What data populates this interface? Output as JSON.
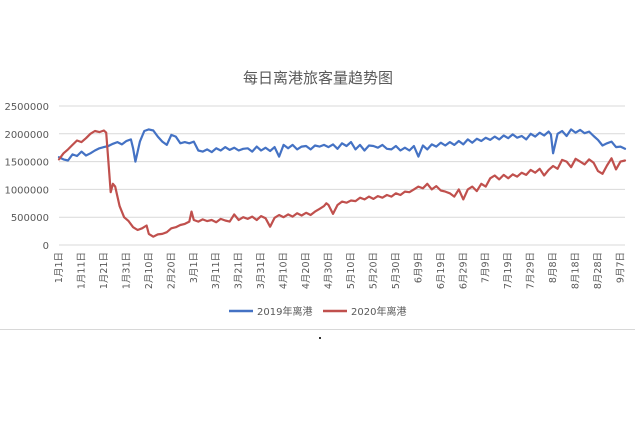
{
  "chart_data": {
    "type": "line",
    "title": "每日离港旅客量趋势图",
    "xlabel": "",
    "ylabel": "",
    "ylim": [
      0,
      2500000
    ],
    "y_ticks": [
      0,
      500000,
      1000000,
      1500000,
      2000000,
      2500000
    ],
    "y_tick_labels": [
      "0",
      "500000",
      "1000000",
      "1500000",
      "2000000",
      "2500000"
    ],
    "x_start_day": 1,
    "x_end_day": 253,
    "x_tick_labels": [
      "1月1日",
      "1月11日",
      "1月21日",
      "1月31日",
      "2月10日",
      "2月20日",
      "3月1日",
      "3月11日",
      "3月21日",
      "3月31日",
      "4月10日",
      "4月20日",
      "4月30日",
      "5月10日",
      "5月20日",
      "5月30日",
      "6月9日",
      "6月19日",
      "6月29日",
      "7月9日",
      "7月19日",
      "7月29日",
      "8月8日",
      "8月18日",
      "8月28日",
      "9月7日"
    ],
    "x_tick_days": [
      1,
      11,
      21,
      31,
      41,
      51,
      61,
      71,
      81,
      91,
      101,
      111,
      121,
      131,
      141,
      151,
      161,
      171,
      181,
      191,
      201,
      211,
      221,
      231,
      241,
      251
    ],
    "grid": "horizontal",
    "legend_position": "bottom",
    "series": [
      {
        "name": "2019年离港",
        "color": "#4472c4",
        "points": [
          [
            1,
            1580000
          ],
          [
            3,
            1540000
          ],
          [
            5,
            1520000
          ],
          [
            7,
            1630000
          ],
          [
            9,
            1600000
          ],
          [
            11,
            1680000
          ],
          [
            13,
            1610000
          ],
          [
            15,
            1650000
          ],
          [
            17,
            1700000
          ],
          [
            19,
            1740000
          ],
          [
            21,
            1760000
          ],
          [
            23,
            1780000
          ],
          [
            25,
            1820000
          ],
          [
            27,
            1850000
          ],
          [
            29,
            1810000
          ],
          [
            31,
            1870000
          ],
          [
            33,
            1900000
          ],
          [
            34,
            1740000
          ],
          [
            35,
            1500000
          ],
          [
            37,
            1860000
          ],
          [
            39,
            2050000
          ],
          [
            41,
            2080000
          ],
          [
            43,
            2060000
          ],
          [
            45,
            1950000
          ],
          [
            47,
            1860000
          ],
          [
            49,
            1800000
          ],
          [
            51,
            1980000
          ],
          [
            53,
            1950000
          ],
          [
            55,
            1830000
          ],
          [
            57,
            1850000
          ],
          [
            59,
            1830000
          ],
          [
            61,
            1860000
          ],
          [
            63,
            1700000
          ],
          [
            65,
            1680000
          ],
          [
            67,
            1720000
          ],
          [
            69,
            1670000
          ],
          [
            71,
            1740000
          ],
          [
            73,
            1700000
          ],
          [
            75,
            1760000
          ],
          [
            77,
            1710000
          ],
          [
            79,
            1750000
          ],
          [
            81,
            1700000
          ],
          [
            83,
            1730000
          ],
          [
            85,
            1740000
          ],
          [
            87,
            1680000
          ],
          [
            89,
            1770000
          ],
          [
            91,
            1700000
          ],
          [
            93,
            1750000
          ],
          [
            95,
            1690000
          ],
          [
            97,
            1760000
          ],
          [
            99,
            1590000
          ],
          [
            101,
            1800000
          ],
          [
            103,
            1740000
          ],
          [
            105,
            1800000
          ],
          [
            107,
            1720000
          ],
          [
            109,
            1770000
          ],
          [
            111,
            1780000
          ],
          [
            113,
            1720000
          ],
          [
            115,
            1790000
          ],
          [
            117,
            1770000
          ],
          [
            119,
            1800000
          ],
          [
            121,
            1760000
          ],
          [
            123,
            1810000
          ],
          [
            125,
            1730000
          ],
          [
            127,
            1830000
          ],
          [
            129,
            1780000
          ],
          [
            131,
            1850000
          ],
          [
            133,
            1720000
          ],
          [
            135,
            1800000
          ],
          [
            137,
            1700000
          ],
          [
            139,
            1790000
          ],
          [
            141,
            1780000
          ],
          [
            143,
            1750000
          ],
          [
            145,
            1800000
          ],
          [
            147,
            1730000
          ],
          [
            149,
            1720000
          ],
          [
            151,
            1780000
          ],
          [
            153,
            1700000
          ],
          [
            155,
            1750000
          ],
          [
            157,
            1700000
          ],
          [
            159,
            1780000
          ],
          [
            161,
            1590000
          ],
          [
            163,
            1790000
          ],
          [
            165,
            1720000
          ],
          [
            167,
            1810000
          ],
          [
            169,
            1770000
          ],
          [
            171,
            1840000
          ],
          [
            173,
            1790000
          ],
          [
            175,
            1850000
          ],
          [
            177,
            1800000
          ],
          [
            179,
            1870000
          ],
          [
            181,
            1810000
          ],
          [
            183,
            1900000
          ],
          [
            185,
            1840000
          ],
          [
            187,
            1910000
          ],
          [
            189,
            1870000
          ],
          [
            191,
            1930000
          ],
          [
            193,
            1890000
          ],
          [
            195,
            1950000
          ],
          [
            197,
            1900000
          ],
          [
            199,
            1970000
          ],
          [
            201,
            1920000
          ],
          [
            203,
            1990000
          ],
          [
            205,
            1930000
          ],
          [
            207,
            1960000
          ],
          [
            209,
            1900000
          ],
          [
            211,
            2000000
          ],
          [
            213,
            1950000
          ],
          [
            215,
            2020000
          ],
          [
            217,
            1970000
          ],
          [
            219,
            2040000
          ],
          [
            220,
            1990000
          ],
          [
            221,
            1650000
          ],
          [
            223,
            2000000
          ],
          [
            225,
            2050000
          ],
          [
            227,
            1960000
          ],
          [
            229,
            2080000
          ],
          [
            231,
            2020000
          ],
          [
            233,
            2070000
          ],
          [
            235,
            2010000
          ],
          [
            237,
            2040000
          ],
          [
            239,
            1960000
          ],
          [
            241,
            1890000
          ],
          [
            243,
            1790000
          ],
          [
            245,
            1830000
          ],
          [
            247,
            1860000
          ],
          [
            249,
            1760000
          ],
          [
            251,
            1770000
          ],
          [
            253,
            1730000
          ]
        ]
      },
      {
        "name": "2020年离港",
        "color": "#c0504d",
        "points": [
          [
            1,
            1540000
          ],
          [
            3,
            1650000
          ],
          [
            5,
            1720000
          ],
          [
            7,
            1800000
          ],
          [
            9,
            1880000
          ],
          [
            11,
            1850000
          ],
          [
            13,
            1920000
          ],
          [
            15,
            2000000
          ],
          [
            17,
            2050000
          ],
          [
            19,
            2030000
          ],
          [
            21,
            2060000
          ],
          [
            22,
            2020000
          ],
          [
            23,
            1500000
          ],
          [
            24,
            950000
          ],
          [
            25,
            1100000
          ],
          [
            26,
            1050000
          ],
          [
            28,
            700000
          ],
          [
            30,
            500000
          ],
          [
            32,
            430000
          ],
          [
            34,
            320000
          ],
          [
            36,
            270000
          ],
          [
            38,
            300000
          ],
          [
            40,
            350000
          ],
          [
            41,
            200000
          ],
          [
            43,
            150000
          ],
          [
            45,
            190000
          ],
          [
            47,
            200000
          ],
          [
            49,
            230000
          ],
          [
            51,
            300000
          ],
          [
            53,
            320000
          ],
          [
            55,
            360000
          ],
          [
            57,
            380000
          ],
          [
            59,
            420000
          ],
          [
            60,
            600000
          ],
          [
            61,
            450000
          ],
          [
            63,
            420000
          ],
          [
            65,
            460000
          ],
          [
            67,
            430000
          ],
          [
            69,
            450000
          ],
          [
            71,
            410000
          ],
          [
            73,
            470000
          ],
          [
            75,
            440000
          ],
          [
            77,
            420000
          ],
          [
            79,
            550000
          ],
          [
            81,
            450000
          ],
          [
            83,
            500000
          ],
          [
            85,
            470000
          ],
          [
            87,
            510000
          ],
          [
            89,
            450000
          ],
          [
            91,
            520000
          ],
          [
            93,
            480000
          ],
          [
            95,
            330000
          ],
          [
            97,
            490000
          ],
          [
            99,
            540000
          ],
          [
            101,
            500000
          ],
          [
            103,
            550000
          ],
          [
            105,
            510000
          ],
          [
            107,
            570000
          ],
          [
            109,
            530000
          ],
          [
            111,
            580000
          ],
          [
            113,
            540000
          ],
          [
            115,
            600000
          ],
          [
            117,
            650000
          ],
          [
            119,
            700000
          ],
          [
            120,
            750000
          ],
          [
            121,
            720000
          ],
          [
            123,
            560000
          ],
          [
            125,
            720000
          ],
          [
            127,
            780000
          ],
          [
            129,
            760000
          ],
          [
            131,
            800000
          ],
          [
            133,
            790000
          ],
          [
            135,
            850000
          ],
          [
            137,
            820000
          ],
          [
            139,
            870000
          ],
          [
            141,
            830000
          ],
          [
            143,
            880000
          ],
          [
            145,
            850000
          ],
          [
            147,
            900000
          ],
          [
            149,
            870000
          ],
          [
            151,
            930000
          ],
          [
            153,
            900000
          ],
          [
            155,
            960000
          ],
          [
            157,
            950000
          ],
          [
            159,
            1000000
          ],
          [
            161,
            1050000
          ],
          [
            163,
            1020000
          ],
          [
            165,
            1100000
          ],
          [
            167,
            1000000
          ],
          [
            169,
            1060000
          ],
          [
            171,
            980000
          ],
          [
            173,
            960000
          ],
          [
            175,
            930000
          ],
          [
            177,
            870000
          ],
          [
            179,
            1000000
          ],
          [
            181,
            820000
          ],
          [
            183,
            1000000
          ],
          [
            185,
            1050000
          ],
          [
            187,
            970000
          ],
          [
            189,
            1100000
          ],
          [
            191,
            1050000
          ],
          [
            193,
            1200000
          ],
          [
            195,
            1250000
          ],
          [
            197,
            1180000
          ],
          [
            199,
            1260000
          ],
          [
            201,
            1200000
          ],
          [
            203,
            1270000
          ],
          [
            205,
            1230000
          ],
          [
            207,
            1300000
          ],
          [
            209,
            1260000
          ],
          [
            211,
            1350000
          ],
          [
            213,
            1300000
          ],
          [
            215,
            1370000
          ],
          [
            217,
            1250000
          ],
          [
            219,
            1350000
          ],
          [
            221,
            1420000
          ],
          [
            223,
            1370000
          ],
          [
            225,
            1530000
          ],
          [
            227,
            1500000
          ],
          [
            229,
            1400000
          ],
          [
            231,
            1550000
          ],
          [
            233,
            1500000
          ],
          [
            235,
            1450000
          ],
          [
            237,
            1540000
          ],
          [
            239,
            1480000
          ],
          [
            241,
            1330000
          ],
          [
            243,
            1280000
          ],
          [
            245,
            1430000
          ],
          [
            247,
            1560000
          ],
          [
            249,
            1360000
          ],
          [
            251,
            1500000
          ],
          [
            253,
            1520000
          ]
        ]
      }
    ]
  }
}
